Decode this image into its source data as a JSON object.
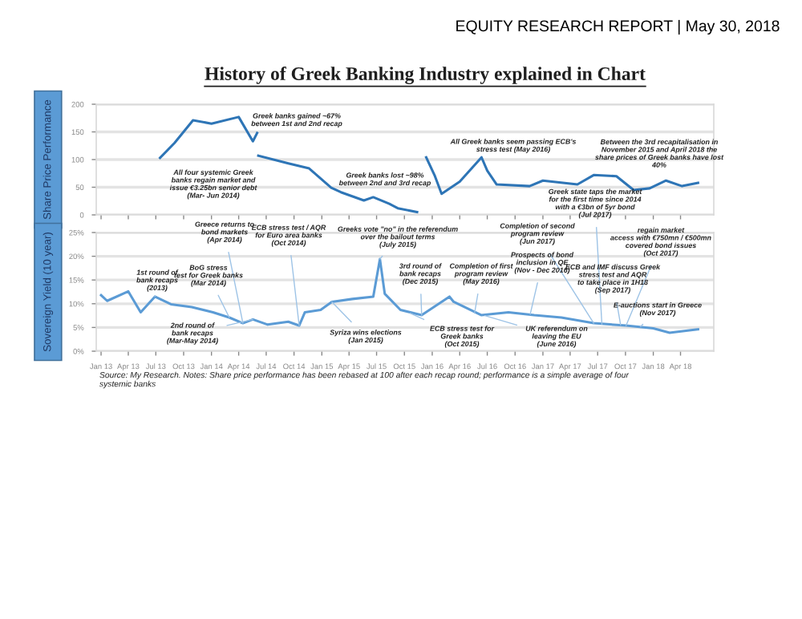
{
  "chart_data": [
    {
      "type": "line",
      "title": "History of Greek Banking Industry explained in Chart",
      "ylabel": "Share Price Performance",
      "xlim": [
        "2012-12-16",
        "2018-07-20"
      ],
      "xticks": [
        {
          "value": "2013-01-01",
          "label": null
        },
        {
          "value": "2013-04-01",
          "label": null
        },
        {
          "value": "2013-07-01",
          "label": null
        },
        {
          "value": "2013-10-01",
          "label": null
        },
        {
          "value": "2014-01-01",
          "label": null
        },
        {
          "value": "2014-04-01",
          "label": null
        },
        {
          "value": "2014-07-01",
          "label": null
        },
        {
          "value": "2014-10-01",
          "label": null
        },
        {
          "value": "2015-01-01",
          "label": null
        },
        {
          "value": "2015-04-01",
          "label": null
        },
        {
          "value": "2015-07-01",
          "label": null
        },
        {
          "value": "2015-10-01",
          "label": null
        },
        {
          "value": "2016-01-01",
          "label": null
        },
        {
          "value": "2016-04-01",
          "label": null
        },
        {
          "value": "2016-07-01",
          "label": null
        },
        {
          "value": "2016-10-01",
          "label": null
        },
        {
          "value": "2017-01-01",
          "label": null
        },
        {
          "value": "2017-04-01",
          "label": null
        },
        {
          "value": "2017-07-01",
          "label": null
        },
        {
          "value": "2017-10-01",
          "label": null
        },
        {
          "value": "2018-01-01",
          "label": null
        },
        {
          "value": "2018-04-01",
          "label": null
        }
      ],
      "ylim": [
        0,
        200
      ],
      "yticks": [
        0,
        50,
        100,
        150,
        200
      ],
      "tick_labels": "y",
      "grid": "y",
      "line_style": "solid",
      "marker": "none",
      "series": [
        {
          "color": "#2e75b6",
          "x": [
            "2013-07-15",
            "2013-09-01",
            "2013-11-01",
            "2014-01-01",
            "2014-04-01",
            "2014-05-18",
            "2014-06-01",
            "2014-06-03",
            "2014-06-05",
            "2014-09-12",
            "2014-11-20",
            "2015-02-01",
            "2015-03-05",
            "2015-05-20",
            "2015-06-20",
            "2015-08-12",
            "2015-09-09",
            "2015-11-12",
            "2015-11-25",
            "2015-12-12",
            "2016-01-10",
            "2016-02-01",
            "2016-04-01",
            "2016-06-12",
            "2016-07-01",
            "2016-08-01",
            "2016-11-18",
            "2017-01-01",
            "2017-04-25",
            "2017-06-18",
            "2017-09-01",
            "2017-10-28",
            "2017-12-20",
            "2018-02-12",
            "2018-04-06",
            "2018-05-29"
          ],
          "values": [
            103,
            130,
            171,
            165,
            177,
            133,
            148,
            null,
            107,
            93,
            84,
            49,
            41,
            26,
            32,
            20,
            12,
            5,
            null,
            104,
            70,
            38,
            60,
            104,
            80,
            55,
            52,
            62,
            55,
            72,
            70,
            45,
            48,
            62,
            52,
            58
          ]
        }
      ],
      "annotations": [
        "EQUITY RESEARCH REPORT | May 30, 2018",
        "Greek banks gained ~67%\nbetween 1st and 2nd recap",
        "All four systemic Greek\nbanks regain market and\nissue €3.25bn senior debt\n(Mar- Jun 2014)",
        "Greek banks lost ~98%\nbetween 2nd and 3rd recap",
        "All Greek banks seem passing ECB's\nstress test (May 2016)",
        "Between the 3rd recapitalisation in\nNovember 2015 and April 2018 the\nshare prices of Greek banks have lost\n40%"
      ]
    },
    {
      "type": "line",
      "ylabel": "Sovereign Yield (10 year)",
      "xlim": [
        "2012-12-16",
        "2018-07-20"
      ],
      "xticks": [
        {
          "value": "2013-01-01",
          "label": "Jan 13"
        },
        {
          "value": "2013-04-01",
          "label": "Apr 13"
        },
        {
          "value": "2013-07-01",
          "label": "Jul 13"
        },
        {
          "value": "2013-10-01",
          "label": "Oct 13"
        },
        {
          "value": "2014-01-01",
          "label": "Jan 14"
        },
        {
          "value": "2014-04-01",
          "label": "Apr 14"
        },
        {
          "value": "2014-07-01",
          "label": "Jul 14"
        },
        {
          "value": "2014-10-01",
          "label": "Oct 14"
        },
        {
          "value": "2015-01-01",
          "label": "Jan 15"
        },
        {
          "value": "2015-04-01",
          "label": "Apr 15"
        },
        {
          "value": "2015-07-01",
          "label": "Jul 15"
        },
        {
          "value": "2015-10-01",
          "label": "Oct 15"
        },
        {
          "value": "2016-01-01",
          "label": "Jan 16"
        },
        {
          "value": "2016-04-01",
          "label": "Apr 16"
        },
        {
          "value": "2016-07-01",
          "label": "Jul 16"
        },
        {
          "value": "2016-10-01",
          "label": "Oct 16"
        },
        {
          "value": "2017-01-01",
          "label": "Jan 17"
        },
        {
          "value": "2017-04-01",
          "label": "Apr 17"
        },
        {
          "value": "2017-07-01",
          "label": "Jul 17"
        },
        {
          "value": "2017-10-01",
          "label": "Oct 17"
        },
        {
          "value": "2018-01-01",
          "label": "Jan 18"
        },
        {
          "value": "2018-04-01",
          "label": "Apr 18"
        }
      ],
      "ylim": [
        0,
        25
      ],
      "yticks": [
        {
          "value": 0,
          "label": "0%"
        },
        {
          "value": 5,
          "label": "5%"
        },
        {
          "value": 10,
          "label": "10%"
        },
        {
          "value": 15,
          "label": "15%"
        },
        {
          "value": 20,
          "label": "20%"
        },
        {
          "value": 25,
          "label": "25%"
        }
      ],
      "grid": "y",
      "line_style": "solid",
      "marker": "none",
      "series": [
        {
          "color": "#5b9bd5",
          "x": [
            "2013-01-01",
            "2013-01-21",
            "2013-04-01",
            "2013-05-12",
            "2013-06-28",
            "2013-08-20",
            "2013-10-28",
            "2014-01-06",
            "2014-03-01",
            "2014-04-15",
            "2014-05-18",
            "2014-07-06",
            "2014-09-12",
            "2014-10-18",
            "2014-11-06",
            "2014-12-28",
            "2015-02-03",
            "2015-04-12",
            "2015-06-20",
            "2015-07-12",
            "2015-07-28",
            "2015-09-09",
            "2015-09-18",
            "2015-11-27",
            "2016-02-27",
            "2016-03-12",
            "2016-06-12",
            "2016-09-09",
            "2016-12-03",
            "2017-03-03",
            "2017-06-18",
            "2017-10-03",
            "2018-01-01",
            "2018-02-24",
            "2018-05-29"
          ],
          "values": [
            11.8,
            10.6,
            12.6,
            8.2,
            11.5,
            9.9,
            9.3,
            8.2,
            7.1,
            5.9,
            6.7,
            5.6,
            6.2,
            5.4,
            8.2,
            8.7,
            10.4,
            11.0,
            11.5,
            19.4,
            12.1,
            9.3,
            8.7,
            7.6,
            11.5,
            10.4,
            7.6,
            8.2,
            7.6,
            7.1,
            5.9,
            5.4,
            4.8,
            3.9,
            4.6
          ]
        }
      ],
      "annotations": [
        {
          "text": "Greece returns to\nbond markets\n(Apr 2014)",
          "x": "2014-04-15",
          "y": 5.9
        },
        {
          "text": "ECB stress test / AQR\nfor Euro area banks\n(Oct 2014)",
          "x": "2014-10-18",
          "y": 5.4
        },
        {
          "text": "Greeks vote \"no\" in the referendum\nover the bailout terms\n(July 2015)",
          "x": "2015-07-12",
          "y": 19.4
        },
        {
          "text": "Completion of second\nprogram review\n(Jun 2017)",
          "x": "2017-06-18",
          "y": 5.9
        },
        {
          "text": "Greek state taps the market\nfor the first time since 2014\nwith a €3bn of 5yr bond\n(Jul 2017)",
          "x": "2017-07-15",
          "y": 5.7
        },
        {
          "text": "regain market\naccess with €750mn / €500mn\ncovered bond issues\n(Oct 2017)",
          "x": "2017-10-03",
          "y": 5.4
        },
        {
          "text": "1st round of\nbank recaps\n(2013)",
          "x": "2013-06-28",
          "y": 11.5
        },
        {
          "text": "BoG stress\ntest for Greek banks\n(Mar 2014)",
          "x": "2014-03-01",
          "y": 7.1
        },
        {
          "text": "2nd round of\nbank recaps\n(Mar-May 2014)",
          "x": "2014-05-18",
          "y": 6.7
        },
        {
          "text": "Syriza wins elections\n(Jan 2015)",
          "x": "2015-02-03",
          "y": 10.4
        },
        {
          "text": "3rd round of\nbank recaps\n(Dec 2015)",
          "x": "2015-11-27",
          "y": 7.6
        },
        {
          "text": "ECB stress test for\nGreek banks\n(Oct 2015)",
          "x": "2015-10-20",
          "y": 8.0
        },
        {
          "text": "Completion of first\nprogram review\n(May 2016)",
          "x": "2016-05-20",
          "y": 8.0
        },
        {
          "text": "UK referendum on\nleaving the EU\n(June 2016)",
          "x": "2016-06-23",
          "y": 7.5
        },
        {
          "text": "Prospects of bond\ninclusion in QE\n(Nov - Dec 2016)",
          "x": "2016-11-20",
          "y": 7.8
        },
        {
          "text": "ECB and IMF discuss Greek\nstress test and AQR\nto take place in 1H18\n(Sep 2017)",
          "x": "2017-09-15",
          "y": 5.5
        },
        {
          "text": "E-auctions start in Greece\n(Nov 2017)",
          "x": "2017-11-20",
          "y": 5.2
        },
        "Source: My Research. Notes: Share price performance has been rebased at 100 after each recap round; performance is a simple average of four\nsystemic banks"
      ]
    }
  ]
}
